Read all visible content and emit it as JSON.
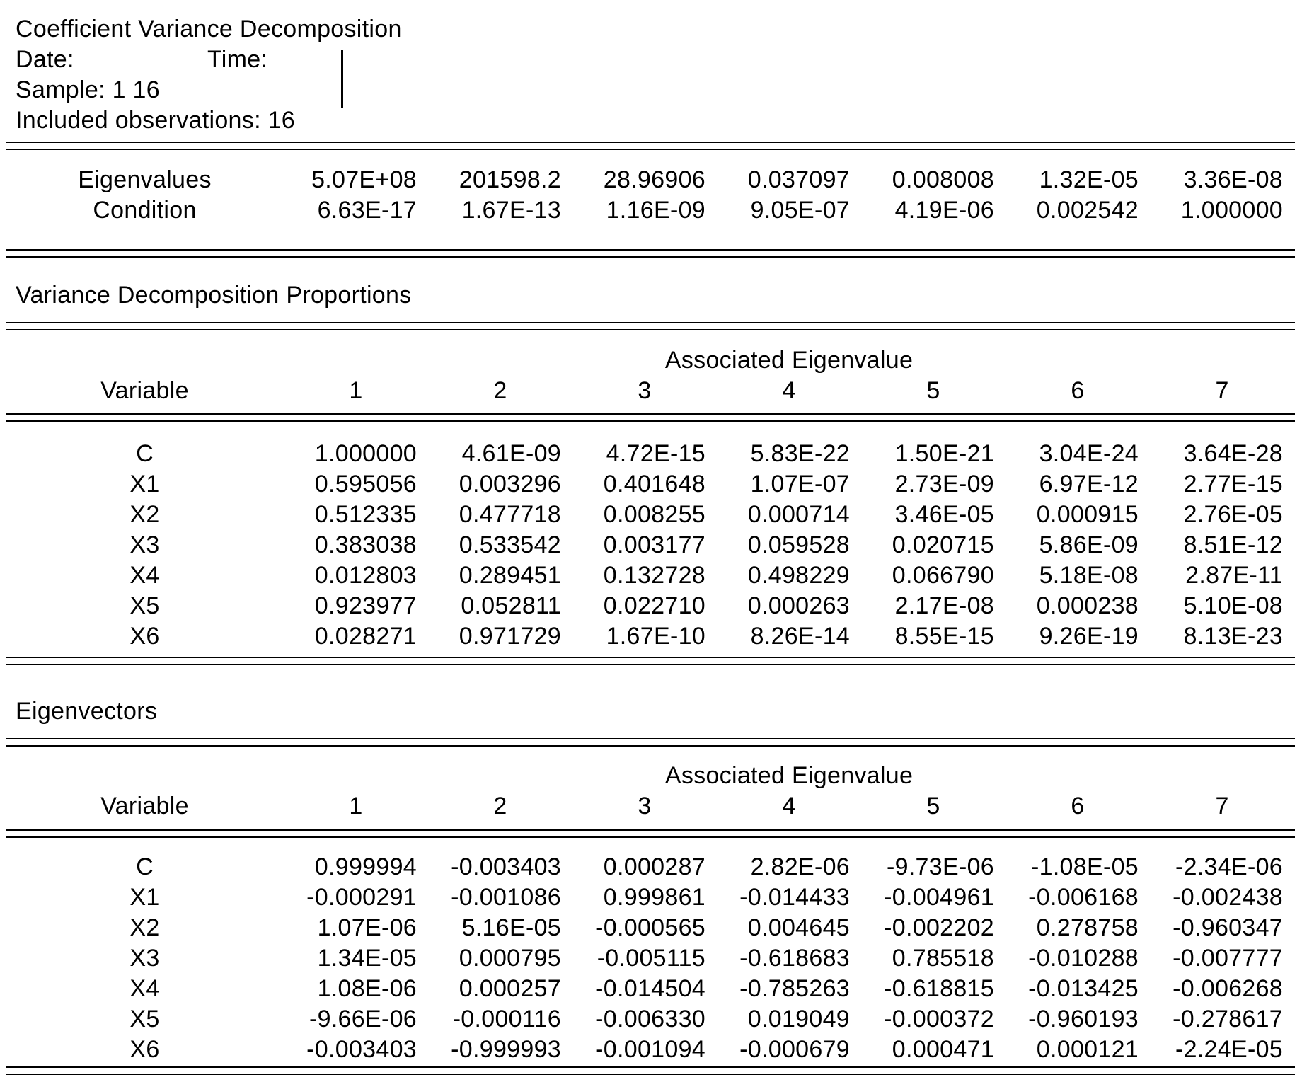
{
  "header": {
    "title": "Coefficient Variance Decomposition",
    "date_label": "Date:",
    "time_label": "Time:",
    "sample": "Sample: 1 16",
    "included_obs": "Included observations: 16"
  },
  "eigen_summary": {
    "rows": [
      {
        "label": "Eigenvalues",
        "values": [
          "5.07E+08",
          "201598.2",
          "28.96906",
          "0.037097",
          "0.008008",
          "1.32E-05",
          "3.36E-08"
        ]
      },
      {
        "label": "Condition",
        "values": [
          "6.63E-17",
          "1.67E-13",
          "1.16E-09",
          "9.05E-07",
          "4.19E-06",
          "0.002542",
          "1.000000"
        ]
      }
    ]
  },
  "proportions": {
    "section_title": "Variance Decomposition Proportions",
    "group_header": "Associated Eigenvalue",
    "variable_header": "Variable",
    "column_headers": [
      "1",
      "2",
      "3",
      "4",
      "5",
      "6",
      "7"
    ],
    "rows": [
      {
        "label": "C",
        "values": [
          "1.000000",
          "4.61E-09",
          "4.72E-15",
          "5.83E-22",
          "1.50E-21",
          "3.04E-24",
          "3.64E-28"
        ]
      },
      {
        "label": "X1",
        "values": [
          "0.595056",
          "0.003296",
          "0.401648",
          "1.07E-07",
          "2.73E-09",
          "6.97E-12",
          "2.77E-15"
        ]
      },
      {
        "label": "X2",
        "values": [
          "0.512335",
          "0.477718",
          "0.008255",
          "0.000714",
          "3.46E-05",
          "0.000915",
          "2.76E-05"
        ]
      },
      {
        "label": "X3",
        "values": [
          "0.383038",
          "0.533542",
          "0.003177",
          "0.059528",
          "0.020715",
          "5.86E-09",
          "8.51E-12"
        ]
      },
      {
        "label": "X4",
        "values": [
          "0.012803",
          "0.289451",
          "0.132728",
          "0.498229",
          "0.066790",
          "5.18E-08",
          "2.87E-11"
        ]
      },
      {
        "label": "X5",
        "values": [
          "0.923977",
          "0.052811",
          "0.022710",
          "0.000263",
          "2.17E-08",
          "0.000238",
          "5.10E-08"
        ]
      },
      {
        "label": "X6",
        "values": [
          "0.028271",
          "0.971729",
          "1.67E-10",
          "8.26E-14",
          "8.55E-15",
          "9.26E-19",
          "8.13E-23"
        ]
      }
    ]
  },
  "eigenvectors": {
    "section_title": "Eigenvectors",
    "group_header": "Associated Eigenvalue",
    "variable_header": "Variable",
    "column_headers": [
      "1",
      "2",
      "3",
      "4",
      "5",
      "6",
      "7"
    ],
    "rows": [
      {
        "label": "C",
        "values": [
          "0.999994",
          "-0.003403",
          "0.000287",
          "2.82E-06",
          "-9.73E-06",
          "-1.08E-05",
          "-2.34E-06"
        ]
      },
      {
        "label": "X1",
        "values": [
          "-0.000291",
          "-0.001086",
          "0.999861",
          "-0.014433",
          "-0.004961",
          "-0.006168",
          "-0.002438"
        ]
      },
      {
        "label": "X2",
        "values": [
          "1.07E-06",
          "5.16E-05",
          "-0.000565",
          "0.004645",
          "-0.002202",
          "0.278758",
          "-0.960347"
        ]
      },
      {
        "label": "X3",
        "values": [
          "1.34E-05",
          "0.000795",
          "-0.005115",
          "-0.618683",
          "0.785518",
          "-0.010288",
          "-0.007777"
        ]
      },
      {
        "label": "X4",
        "values": [
          "1.08E-06",
          "0.000257",
          "-0.014504",
          "-0.785263",
          "-0.618815",
          "-0.013425",
          "-0.006268"
        ]
      },
      {
        "label": "X5",
        "values": [
          "-9.66E-06",
          "-0.000116",
          "-0.006330",
          "0.019049",
          "-0.000372",
          "-0.960193",
          "-0.278617"
        ]
      },
      {
        "label": "X6",
        "values": [
          "-0.003403",
          "-0.999993",
          "-0.001094",
          "-0.000679",
          "0.000471",
          "0.000121",
          "-2.24E-05"
        ]
      }
    ]
  },
  "colors": {
    "text": "#000000",
    "background": "#ffffff"
  }
}
